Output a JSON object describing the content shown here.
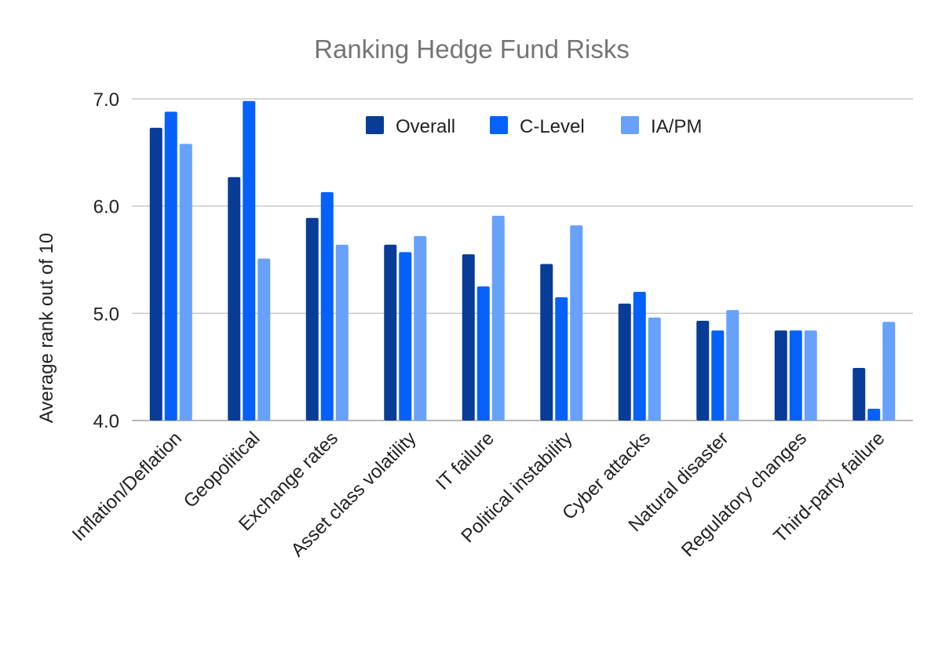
{
  "chart_data": {
    "type": "bar",
    "title": "Ranking Hedge Fund Risks",
    "xlabel": "",
    "ylabel": "Average rank out of 10",
    "ylim": [
      4.0,
      7.0
    ],
    "yticks": [
      "4.0",
      "5.0",
      "6.0",
      "7.0"
    ],
    "grid": true,
    "legend_position": "top-center",
    "categories": [
      "Inflation/Deflation",
      "Geopolitical",
      "Exchange rates",
      "Asset class volatility",
      "IT failure",
      "Political instability",
      "Cyber attacks",
      "Natural disaster",
      "Regulatory changes",
      "Third-party failure"
    ],
    "series": [
      {
        "name": "Overall",
        "color": "#083c97",
        "values": [
          6.73,
          6.27,
          5.89,
          5.64,
          5.55,
          5.46,
          5.09,
          4.93,
          4.84,
          4.49
        ]
      },
      {
        "name": "C-Level",
        "color": "#0561fa",
        "values": [
          6.88,
          6.98,
          6.13,
          5.57,
          5.25,
          5.15,
          5.2,
          4.84,
          4.84,
          4.11
        ]
      },
      {
        "name": "IA/PM",
        "color": "#67a1fa",
        "values": [
          6.58,
          5.51,
          5.64,
          5.72,
          5.91,
          5.82,
          4.96,
          5.03,
          4.84,
          4.92
        ]
      }
    ]
  }
}
